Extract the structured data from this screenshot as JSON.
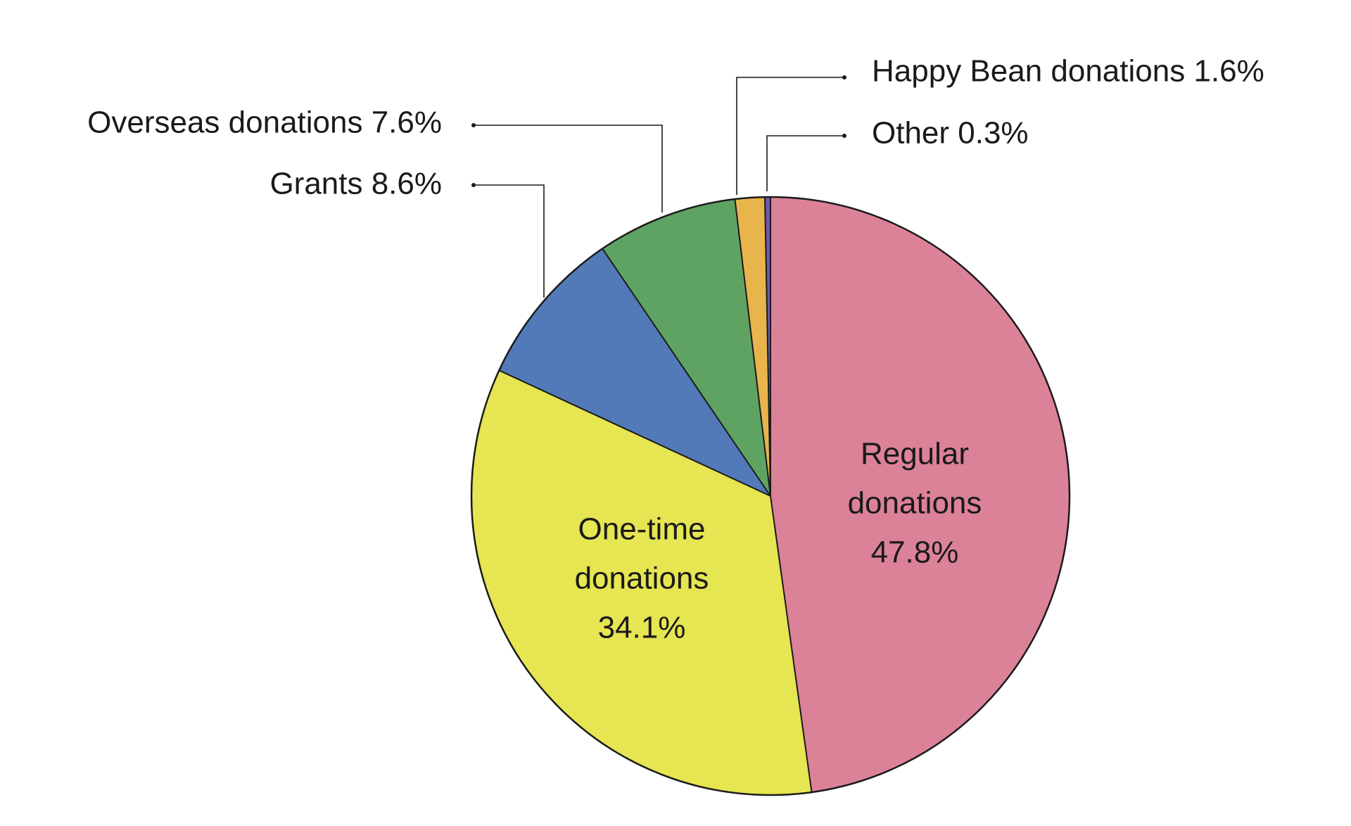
{
  "chart_data": {
    "type": "pie",
    "start": "top",
    "direction": "clockwise",
    "outline": "#1a1a1a",
    "slices": [
      {
        "label": "Regular donations",
        "value": 47.8,
        "value_label": "47.8%",
        "color": "#dc8298",
        "label_lines": [
          "Regular",
          "donations",
          "47.8%"
        ],
        "label_placement": "inside"
      },
      {
        "label": "One-time donations",
        "value": 34.1,
        "value_label": "34.1%",
        "color": "#e6e552",
        "label_lines": [
          "One-time",
          "donations",
          "34.1%"
        ],
        "label_placement": "inside"
      },
      {
        "label": "Grants",
        "value": 8.6,
        "value_label": "8.6%",
        "color": "#537ab8",
        "label_lines": [
          "Grants 8.6%"
        ],
        "label_placement": "outside-left"
      },
      {
        "label": "Overseas donations",
        "value": 7.6,
        "value_label": "7.6%",
        "color": "#5fa363",
        "label_lines": [
          "Overseas donations 7.6%"
        ],
        "label_placement": "outside-left"
      },
      {
        "label": "Happy Bean donations",
        "value": 1.6,
        "value_label": "1.6%",
        "color": "#e8b44c",
        "label_lines": [
          "Happy Bean donations 1.6%"
        ],
        "label_placement": "outside-right"
      },
      {
        "label": "Other",
        "value": 0.3,
        "value_label": "0.3%",
        "color": "#7755b0",
        "label_lines": [
          "Other 0.3%"
        ],
        "label_placement": "outside-right"
      }
    ]
  }
}
